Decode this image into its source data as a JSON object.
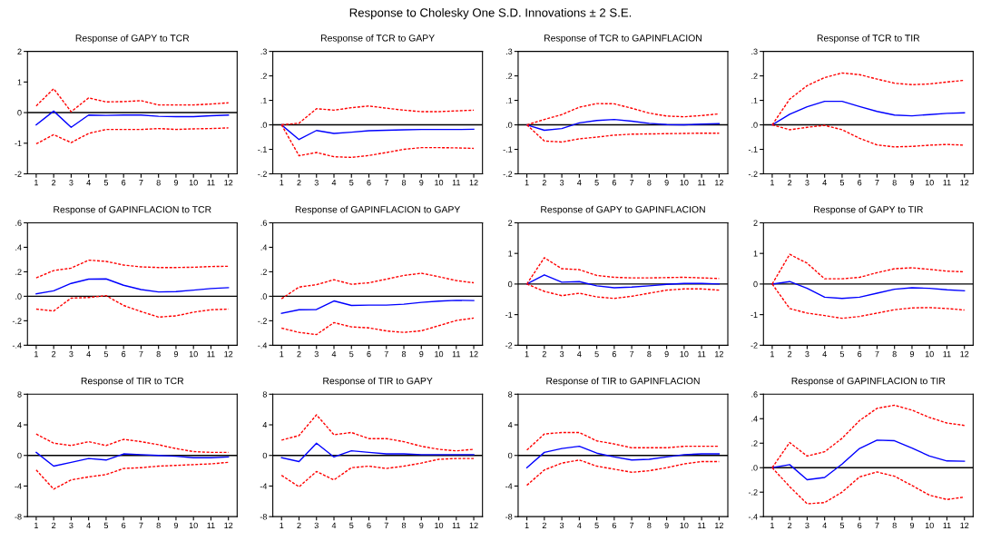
{
  "chart_data": [
    {
      "type": "line",
      "title": "Response of GAPY to TCR",
      "annotations": [
        "Response to Cholesky One S.D. Innovations ± 2 S.E."
      ],
      "categories": [
        "1",
        "2",
        "3",
        "4",
        "5",
        "6",
        "7",
        "8",
        "9",
        "10",
        "11",
        "12"
      ],
      "ylim": [
        -2,
        2
      ],
      "yticks": [
        -2,
        -1,
        0,
        1,
        2
      ],
      "ref_lines": [
        {
          "axis": "y",
          "value": 0,
          "color": "#000000"
        }
      ],
      "grid": false,
      "series": [
        {
          "color": "#0000ff",
          "line_style": "solid",
          "values": [
            -0.4,
            0.05,
            -0.48,
            -0.08,
            -0.09,
            -0.08,
            -0.08,
            -0.12,
            -0.13,
            -0.13,
            -0.1,
            -0.08
          ]
        },
        {
          "color": "#ff0000",
          "line_style": "dashed",
          "values": [
            0.22,
            0.78,
            0.03,
            0.48,
            0.35,
            0.36,
            0.39,
            0.25,
            0.25,
            0.25,
            0.28,
            0.32
          ]
        },
        {
          "color": "#ff0000",
          "line_style": "dashed",
          "values": [
            -1.02,
            -0.72,
            -0.98,
            -0.68,
            -0.55,
            -0.55,
            -0.55,
            -0.52,
            -0.55,
            -0.53,
            -0.52,
            -0.5
          ]
        }
      ]
    },
    {
      "type": "line",
      "title": "Response of TCR to GAPY",
      "categories": [
        "1",
        "2",
        "3",
        "4",
        "5",
        "6",
        "7",
        "8",
        "9",
        "10",
        "11",
        "12"
      ],
      "ylim": [
        -0.2,
        0.3
      ],
      "yticks": [
        {
          "value": -0.2,
          "label": "-.2"
        },
        {
          "value": -0.1,
          "label": "-.1"
        },
        {
          "value": 0,
          "label": ".0"
        },
        {
          "value": 0.1,
          "label": ".1"
        },
        {
          "value": 0.2,
          "label": ".2"
        },
        {
          "value": 0.3,
          "label": ".3"
        }
      ],
      "ref_lines": [
        {
          "axis": "y",
          "value": 0,
          "color": "#000000"
        }
      ],
      "grid": false,
      "series": [
        {
          "color": "#0000ff",
          "line_style": "solid",
          "values": [
            0,
            -0.06,
            -0.023,
            -0.035,
            -0.03,
            -0.024,
            -0.022,
            -0.02,
            -0.019,
            -0.019,
            -0.019,
            -0.018
          ]
        },
        {
          "color": "#ff0000",
          "line_style": "dashed",
          "values": [
            0,
            0.007,
            0.066,
            0.06,
            0.07,
            0.077,
            0.068,
            0.06,
            0.054,
            0.054,
            0.057,
            0.06
          ]
        },
        {
          "color": "#ff0000",
          "line_style": "dashed",
          "values": [
            0,
            -0.126,
            -0.113,
            -0.13,
            -0.133,
            -0.125,
            -0.113,
            -0.1,
            -0.093,
            -0.093,
            -0.094,
            -0.096
          ]
        }
      ]
    },
    {
      "type": "line",
      "title": "Response of TCR to GAPINFLACION",
      "categories": [
        "1",
        "2",
        "3",
        "4",
        "5",
        "6",
        "7",
        "8",
        "9",
        "10",
        "11",
        "12"
      ],
      "ylim": [
        -0.2,
        0.3
      ],
      "yticks": [
        {
          "value": -0.2,
          "label": "-.2"
        },
        {
          "value": -0.1,
          "label": "-.1"
        },
        {
          "value": 0,
          "label": ".0"
        },
        {
          "value": 0.1,
          "label": ".1"
        },
        {
          "value": 0.2,
          "label": ".2"
        },
        {
          "value": 0.3,
          "label": ".3"
        }
      ],
      "ref_lines": [
        {
          "axis": "y",
          "value": 0,
          "color": "#000000"
        }
      ],
      "grid": false,
      "series": [
        {
          "color": "#0000ff",
          "line_style": "solid",
          "values": [
            0,
            -0.022,
            -0.015,
            0.008,
            0.018,
            0.022,
            0.015,
            0.006,
            0.001,
            0,
            0.003,
            0.005
          ]
        },
        {
          "color": "#ff0000",
          "line_style": "dashed",
          "values": [
            0,
            0.022,
            0.042,
            0.072,
            0.087,
            0.086,
            0.068,
            0.048,
            0.036,
            0.033,
            0.038,
            0.045
          ]
        },
        {
          "color": "#ff0000",
          "line_style": "dashed",
          "values": [
            0,
            -0.066,
            -0.07,
            -0.057,
            -0.05,
            -0.042,
            -0.038,
            -0.037,
            -0.036,
            -0.035,
            -0.034,
            -0.034
          ]
        }
      ]
    },
    {
      "type": "line",
      "title": "Response of TCR to TIR",
      "categories": [
        "1",
        "2",
        "3",
        "4",
        "5",
        "6",
        "7",
        "8",
        "9",
        "10",
        "11",
        "12"
      ],
      "ylim": [
        -0.2,
        0.3
      ],
      "yticks": [
        {
          "value": -0.2,
          "label": "-.2"
        },
        {
          "value": -0.1,
          "label": "-.1"
        },
        {
          "value": 0,
          "label": ".0"
        },
        {
          "value": 0.1,
          "label": ".1"
        },
        {
          "value": 0.2,
          "label": ".2"
        },
        {
          "value": 0.3,
          "label": ".3"
        }
      ],
      "ref_lines": [
        {
          "axis": "y",
          "value": 0,
          "color": "#000000"
        }
      ],
      "grid": false,
      "series": [
        {
          "color": "#0000ff",
          "line_style": "solid",
          "values": [
            0,
            0.043,
            0.074,
            0.096,
            0.096,
            0.075,
            0.055,
            0.04,
            0.037,
            0.042,
            0.047,
            0.049
          ]
        },
        {
          "color": "#ff0000",
          "line_style": "dashed",
          "values": [
            0,
            0.105,
            0.16,
            0.193,
            0.212,
            0.205,
            0.187,
            0.17,
            0.164,
            0.167,
            0.175,
            0.182
          ]
        },
        {
          "color": "#ff0000",
          "line_style": "dashed",
          "values": [
            0,
            -0.02,
            -0.01,
            -0.002,
            -0.02,
            -0.055,
            -0.082,
            -0.09,
            -0.088,
            -0.083,
            -0.08,
            -0.083
          ]
        }
      ]
    },
    {
      "type": "line",
      "title": "Response of GAPINFLACION to TCR",
      "categories": [
        "1",
        "2",
        "3",
        "4",
        "5",
        "6",
        "7",
        "8",
        "9",
        "10",
        "11",
        "12"
      ],
      "ylim": [
        -0.4,
        0.6
      ],
      "yticks": [
        {
          "value": -0.4,
          "label": "-.4"
        },
        {
          "value": -0.2,
          "label": "-.2"
        },
        {
          "value": 0,
          "label": ".0"
        },
        {
          "value": 0.2,
          "label": ".2"
        },
        {
          "value": 0.4,
          "label": ".4"
        },
        {
          "value": 0.6,
          "label": ".6"
        }
      ],
      "ref_lines": [
        {
          "axis": "y",
          "value": 0,
          "color": "#000000"
        }
      ],
      "grid": false,
      "series": [
        {
          "color": "#0000ff",
          "line_style": "solid",
          "values": [
            0.02,
            0.045,
            0.105,
            0.14,
            0.142,
            0.09,
            0.055,
            0.035,
            0.038,
            0.05,
            0.063,
            0.07
          ]
        },
        {
          "color": "#ff0000",
          "line_style": "dashed",
          "values": [
            0.15,
            0.21,
            0.23,
            0.295,
            0.285,
            0.255,
            0.24,
            0.235,
            0.235,
            0.237,
            0.243,
            0.245
          ]
        },
        {
          "color": "#ff0000",
          "line_style": "dashed",
          "values": [
            -0.105,
            -0.12,
            -0.015,
            -0.01,
            0.005,
            -0.075,
            -0.125,
            -0.17,
            -0.16,
            -0.13,
            -0.11,
            -0.105
          ]
        }
      ]
    },
    {
      "type": "line",
      "title": "Response of GAPINFLACION to GAPY",
      "categories": [
        "1",
        "2",
        "3",
        "4",
        "5",
        "6",
        "7",
        "8",
        "9",
        "10",
        "11",
        "12"
      ],
      "ylim": [
        -0.4,
        0.6
      ],
      "yticks": [
        {
          "value": -0.4,
          "label": "-.4"
        },
        {
          "value": -0.2,
          "label": "-.2"
        },
        {
          "value": 0,
          "label": ".0"
        },
        {
          "value": 0.2,
          "label": ".2"
        },
        {
          "value": 0.4,
          "label": ".4"
        },
        {
          "value": 0.6,
          "label": ".6"
        }
      ],
      "ref_lines": [
        {
          "axis": "y",
          "value": 0,
          "color": "#000000"
        }
      ],
      "grid": false,
      "series": [
        {
          "color": "#0000ff",
          "line_style": "solid",
          "values": [
            -0.14,
            -0.11,
            -0.108,
            -0.038,
            -0.075,
            -0.072,
            -0.072,
            -0.065,
            -0.05,
            -0.04,
            -0.033,
            -0.035
          ]
        },
        {
          "color": "#ff0000",
          "line_style": "dashed",
          "values": [
            -0.02,
            0.075,
            0.095,
            0.135,
            0.098,
            0.11,
            0.14,
            0.17,
            0.188,
            0.16,
            0.128,
            0.11
          ]
        },
        {
          "color": "#ff0000",
          "line_style": "dashed",
          "values": [
            -0.26,
            -0.295,
            -0.313,
            -0.215,
            -0.25,
            -0.258,
            -0.283,
            -0.295,
            -0.282,
            -0.24,
            -0.198,
            -0.178
          ]
        }
      ]
    },
    {
      "type": "line",
      "title": "Response of GAPY to GAPINFLACION",
      "categories": [
        "1",
        "2",
        "3",
        "4",
        "5",
        "6",
        "7",
        "8",
        "9",
        "10",
        "11",
        "12"
      ],
      "ylim": [
        -2,
        2
      ],
      "yticks": [
        -2,
        -1,
        0,
        1,
        2
      ],
      "ref_lines": [
        {
          "axis": "y",
          "value": 0,
          "color": "#000000"
        }
      ],
      "grid": false,
      "series": [
        {
          "color": "#0000ff",
          "line_style": "solid",
          "values": [
            0,
            0.3,
            0.06,
            0.08,
            -0.06,
            -0.12,
            -0.1,
            -0.06,
            -0.01,
            0.02,
            0.02,
            0
          ]
        },
        {
          "color": "#ff0000",
          "line_style": "dashed",
          "values": [
            0,
            0.86,
            0.5,
            0.47,
            0.28,
            0.22,
            0.2,
            0.2,
            0.21,
            0.22,
            0.2,
            0.18
          ]
        },
        {
          "color": "#ff0000",
          "line_style": "dashed",
          "values": [
            0,
            -0.24,
            -0.38,
            -0.3,
            -0.42,
            -0.47,
            -0.4,
            -0.3,
            -0.2,
            -0.16,
            -0.16,
            -0.2
          ]
        }
      ]
    },
    {
      "type": "line",
      "title": "Response of GAPY to TIR",
      "categories": [
        "1",
        "2",
        "3",
        "4",
        "5",
        "6",
        "7",
        "8",
        "9",
        "10",
        "11",
        "12"
      ],
      "ylim": [
        -2,
        2
      ],
      "yticks": [
        -2,
        -1,
        0,
        1,
        2
      ],
      "ref_lines": [
        {
          "axis": "y",
          "value": 0,
          "color": "#000000"
        }
      ],
      "grid": false,
      "series": [
        {
          "color": "#0000ff",
          "line_style": "solid",
          "values": [
            0,
            0.08,
            -0.14,
            -0.43,
            -0.47,
            -0.43,
            -0.3,
            -0.17,
            -0.12,
            -0.14,
            -0.19,
            -0.22
          ]
        },
        {
          "color": "#ff0000",
          "line_style": "dashed",
          "values": [
            0,
            0.97,
            0.68,
            0.17,
            0.17,
            0.22,
            0.37,
            0.5,
            0.53,
            0.48,
            0.42,
            0.4
          ]
        },
        {
          "color": "#ff0000",
          "line_style": "dashed",
          "values": [
            0,
            -0.8,
            -0.95,
            -1.03,
            -1.12,
            -1.06,
            -0.95,
            -0.84,
            -0.78,
            -0.77,
            -0.8,
            -0.85
          ]
        }
      ]
    },
    {
      "type": "line",
      "title": "Response of TIR to TCR",
      "categories": [
        "1",
        "2",
        "3",
        "4",
        "5",
        "6",
        "7",
        "8",
        "9",
        "10",
        "11",
        "12"
      ],
      "ylim": [
        -8,
        8
      ],
      "yticks": [
        -8,
        -4,
        0,
        4,
        8
      ],
      "ref_lines": [
        {
          "axis": "y",
          "value": 0,
          "color": "#000000"
        }
      ],
      "grid": false,
      "series": [
        {
          "color": "#0000ff",
          "line_style": "solid",
          "values": [
            0.4,
            -1.4,
            -0.9,
            -0.4,
            -0.6,
            0.2,
            0.1,
            0,
            -0.1,
            -0.3,
            -0.3,
            -0.2
          ]
        },
        {
          "color": "#ff0000",
          "line_style": "dashed",
          "values": [
            2.8,
            1.6,
            1.3,
            1.8,
            1.3,
            2.1,
            1.8,
            1.4,
            0.9,
            0.5,
            0.4,
            0.4
          ]
        },
        {
          "color": "#ff0000",
          "line_style": "dashed",
          "values": [
            -1.9,
            -4.4,
            -3.2,
            -2.8,
            -2.5,
            -1.7,
            -1.6,
            -1.4,
            -1.3,
            -1.2,
            -1.1,
            -0.9
          ]
        }
      ]
    },
    {
      "type": "line",
      "title": "Response of TIR to GAPY",
      "categories": [
        "1",
        "2",
        "3",
        "4",
        "5",
        "6",
        "7",
        "8",
        "9",
        "10",
        "11",
        "12"
      ],
      "ylim": [
        -8,
        8
      ],
      "yticks": [
        -8,
        -4,
        0,
        4,
        8
      ],
      "ref_lines": [
        {
          "axis": "y",
          "value": 0,
          "color": "#000000"
        }
      ],
      "grid": false,
      "series": [
        {
          "color": "#0000ff",
          "line_style": "solid",
          "values": [
            -0.3,
            -0.8,
            1.6,
            -0.2,
            0.6,
            0.4,
            0.2,
            0.2,
            0.1,
            0.1,
            0.1,
            0.1
          ]
        },
        {
          "color": "#ff0000",
          "line_style": "dashed",
          "values": [
            2.0,
            2.6,
            5.3,
            2.7,
            3.0,
            2.2,
            2.2,
            1.8,
            1.2,
            0.8,
            0.6,
            0.8
          ]
        },
        {
          "color": "#ff0000",
          "line_style": "dashed",
          "values": [
            -2.6,
            -4.1,
            -2.1,
            -3.2,
            -1.6,
            -1.4,
            -1.7,
            -1.4,
            -1.0,
            -0.5,
            -0.4,
            -0.4
          ]
        }
      ]
    },
    {
      "type": "line",
      "title": "Response of TIR to GAPINFLACION",
      "categories": [
        "1",
        "2",
        "3",
        "4",
        "5",
        "6",
        "7",
        "8",
        "9",
        "10",
        "11",
        "12"
      ],
      "ylim": [
        -8,
        8
      ],
      "yticks": [
        -8,
        -4,
        0,
        4,
        8
      ],
      "ref_lines": [
        {
          "axis": "y",
          "value": 0,
          "color": "#000000"
        }
      ],
      "grid": false,
      "series": [
        {
          "color": "#0000ff",
          "line_style": "solid",
          "values": [
            -1.6,
            0.4,
            0.9,
            1.2,
            0.3,
            -0.2,
            -0.6,
            -0.5,
            -0.2,
            0.1,
            0.2,
            0.2
          ]
        },
        {
          "color": "#ff0000",
          "line_style": "dashed",
          "values": [
            0.7,
            2.8,
            3.0,
            3.0,
            1.9,
            1.5,
            1.0,
            1.0,
            1.0,
            1.2,
            1.2,
            1.2
          ]
        },
        {
          "color": "#ff0000",
          "line_style": "dashed",
          "values": [
            -3.9,
            -1.9,
            -1.0,
            -0.6,
            -1.4,
            -1.8,
            -2.2,
            -2.0,
            -1.6,
            -1.1,
            -0.8,
            -0.8
          ]
        }
      ]
    },
    {
      "type": "line",
      "title": "Response of GAPINFLACION to TIR",
      "categories": [
        "1",
        "2",
        "3",
        "4",
        "5",
        "6",
        "7",
        "8",
        "9",
        "10",
        "11",
        "12"
      ],
      "ylim": [
        -0.4,
        0.6
      ],
      "yticks": [
        {
          "value": -0.4,
          "label": "-.4"
        },
        {
          "value": -0.2,
          "label": "-.2"
        },
        {
          "value": 0,
          "label": ".0"
        },
        {
          "value": 0.2,
          "label": ".2"
        },
        {
          "value": 0.4,
          "label": ".4"
        },
        {
          "value": 0.6,
          "label": ".6"
        }
      ],
      "ref_lines": [
        {
          "axis": "y",
          "value": 0,
          "color": "#000000"
        }
      ],
      "grid": false,
      "series": [
        {
          "color": "#0000ff",
          "line_style": "solid",
          "values": [
            0,
            0.025,
            -0.098,
            -0.08,
            0.03,
            0.157,
            0.225,
            0.22,
            0.16,
            0.095,
            0.055,
            0.053
          ]
        },
        {
          "color": "#ff0000",
          "line_style": "dashed",
          "values": [
            0,
            0.205,
            0.095,
            0.13,
            0.24,
            0.385,
            0.485,
            0.51,
            0.47,
            0.41,
            0.365,
            0.345
          ]
        },
        {
          "color": "#ff0000",
          "line_style": "dashed",
          "values": [
            0,
            -0.155,
            -0.295,
            -0.285,
            -0.2,
            -0.075,
            -0.035,
            -0.07,
            -0.145,
            -0.225,
            -0.26,
            -0.24
          ]
        }
      ]
    }
  ]
}
